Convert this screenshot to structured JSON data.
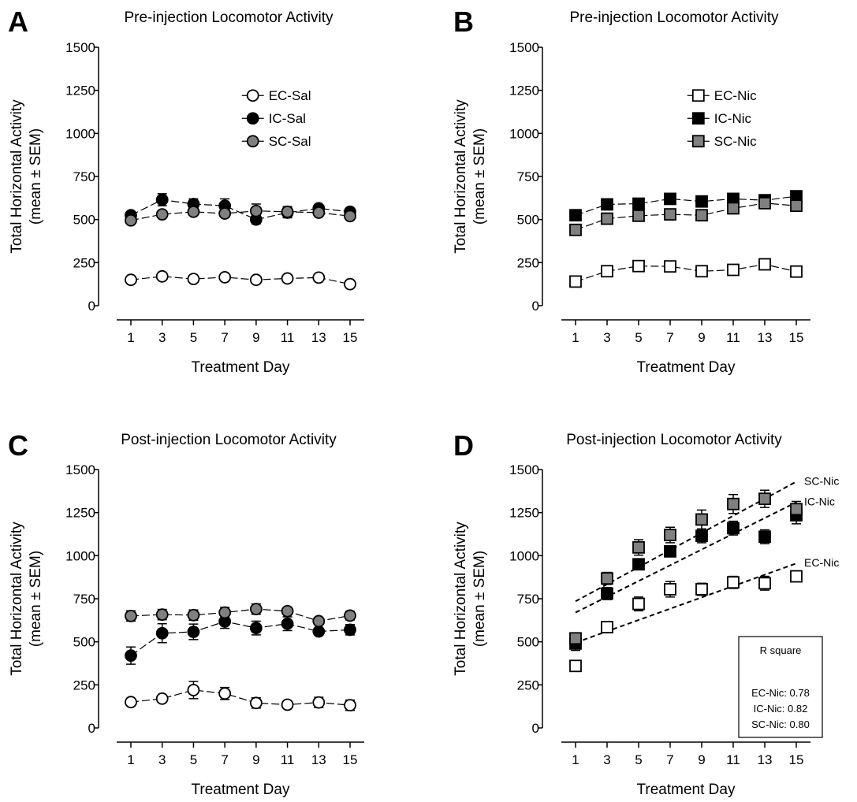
{
  "figure": {
    "colors": {
      "white": "#ffffff",
      "black": "#000000",
      "gray": "#808080"
    }
  },
  "chart_data": [
    {
      "panel": "A",
      "type": "line",
      "marker": "circle",
      "title": "Pre-injection Locomotor Activity",
      "xlabel": "Treatment Day",
      "ylabel_line1": "Total Horizontal Activity",
      "ylabel_line2": "(mean ± SEM)",
      "ylim": [
        0,
        1500
      ],
      "yticks": [
        0,
        250,
        500,
        750,
        1000,
        1250,
        1500
      ],
      "x": [
        1,
        3,
        5,
        7,
        9,
        11,
        13,
        15
      ],
      "legend_position": "upper-middle",
      "series": [
        {
          "name": "EC-Sal",
          "fill": "white",
          "values": [
            150,
            170,
            155,
            165,
            150,
            158,
            163,
            125
          ],
          "sem": [
            12,
            10,
            10,
            10,
            10,
            10,
            10,
            10
          ]
        },
        {
          "name": "IC-Sal",
          "fill": "black",
          "values": [
            525,
            615,
            590,
            580,
            500,
            540,
            565,
            545
          ],
          "sem": [
            15,
            35,
            30,
            40,
            25,
            30,
            15,
            15
          ]
        },
        {
          "name": "SC-Sal",
          "fill": "gray",
          "values": [
            495,
            530,
            545,
            535,
            550,
            545,
            540,
            520
          ],
          "sem": [
            15,
            15,
            20,
            20,
            40,
            30,
            15,
            15
          ]
        }
      ]
    },
    {
      "panel": "B",
      "type": "line",
      "marker": "square",
      "title": "Pre-injection Locomotor Activity",
      "xlabel": "Treatment Day",
      "ylabel_line1": "Total Horizontal Activity",
      "ylabel_line2": "(mean ± SEM)",
      "ylim": [
        0,
        1500
      ],
      "yticks": [
        0,
        250,
        500,
        750,
        1000,
        1250,
        1500
      ],
      "x": [
        1,
        3,
        5,
        7,
        9,
        11,
        13,
        15
      ],
      "legend_position": "upper-middle",
      "series": [
        {
          "name": "EC-Nic",
          "fill": "white",
          "values": [
            140,
            200,
            230,
            228,
            200,
            208,
            240,
            198
          ],
          "sem": [
            10,
            12,
            15,
            15,
            12,
            12,
            15,
            12
          ]
        },
        {
          "name": "IC-Nic",
          "fill": "black",
          "values": [
            525,
            588,
            592,
            620,
            605,
            620,
            612,
            635
          ],
          "sem": [
            15,
            18,
            15,
            18,
            15,
            18,
            15,
            20
          ]
        },
        {
          "name": "SC-Nic",
          "fill": "gray",
          "values": [
            440,
            505,
            522,
            530,
            525,
            565,
            595,
            580
          ],
          "sem": [
            15,
            15,
            15,
            15,
            15,
            15,
            15,
            15
          ]
        }
      ]
    },
    {
      "panel": "C",
      "type": "line",
      "marker": "circle",
      "title": "Post-injection Locomotor Activity",
      "xlabel": "Treatment Day",
      "ylabel_line1": "Total Horizontal Activity",
      "ylabel_line2": "(mean ± SEM)",
      "ylim": [
        0,
        1500
      ],
      "yticks": [
        0,
        250,
        500,
        750,
        1000,
        1250,
        1500
      ],
      "x": [
        1,
        3,
        5,
        7,
        9,
        11,
        13,
        15
      ],
      "series": [
        {
          "name": "EC-Sal",
          "fill": "white",
          "values": [
            150,
            170,
            220,
            200,
            145,
            135,
            148,
            132
          ],
          "sem": [
            10,
            10,
            50,
            35,
            30,
            10,
            30,
            30
          ]
        },
        {
          "name": "IC-Sal",
          "fill": "black",
          "values": [
            420,
            550,
            558,
            618,
            580,
            605,
            560,
            570
          ],
          "sem": [
            50,
            55,
            45,
            40,
            40,
            40,
            15,
            30
          ]
        },
        {
          "name": "SC-Sal",
          "fill": "gray",
          "values": [
            650,
            658,
            655,
            670,
            690,
            678,
            620,
            652
          ],
          "sem": [
            30,
            30,
            30,
            30,
            30,
            15,
            15,
            25
          ]
        }
      ]
    },
    {
      "panel": "D",
      "type": "scatter",
      "marker": "square",
      "title": "Post-injection Locomotor Activity",
      "xlabel": "Treatment Day",
      "ylabel_line1": "Total Horizontal Activity",
      "ylabel_line2": "(mean ± SEM)",
      "ylim": [
        0,
        1500
      ],
      "yticks": [
        0,
        250,
        500,
        750,
        1000,
        1250,
        1500
      ],
      "x": [
        1,
        3,
        5,
        7,
        9,
        11,
        13,
        15
      ],
      "series": [
        {
          "name": "EC-Nic",
          "fill": "white",
          "values": [
            360,
            585,
            720,
            805,
            805,
            845,
            840,
            880
          ],
          "sem": [
            15,
            30,
            40,
            45,
            35,
            35,
            40,
            30
          ],
          "fit": {
            "x": [
              1,
              15
            ],
            "y": [
              495,
              955
            ]
          },
          "fit_label": "EC-Nic"
        },
        {
          "name": "IC-Nic",
          "fill": "black",
          "values": [
            490,
            780,
            950,
            1025,
            1115,
            1160,
            1110,
            1235
          ],
          "sem": [
            40,
            35,
            30,
            30,
            40,
            40,
            40,
            50
          ],
          "fit": {
            "x": [
              1,
              15
            ],
            "y": [
              670,
              1310
            ]
          },
          "fit_label": "IC-Nic"
        },
        {
          "name": "SC-Nic",
          "fill": "gray",
          "values": [
            520,
            868,
            1048,
            1120,
            1210,
            1300,
            1330,
            1270
          ],
          "sem": [
            20,
            35,
            45,
            45,
            55,
            55,
            50,
            45
          ],
          "fit": {
            "x": [
              1,
              15
            ],
            "y": [
              735,
              1430
            ]
          },
          "fit_label": "SC-Nic"
        }
      ],
      "rsquare": {
        "title": "R square",
        "lines": [
          "EC-Nic: 0.78",
          "IC-Nic: 0.82",
          "SC-Nic: 0.80"
        ]
      }
    }
  ]
}
